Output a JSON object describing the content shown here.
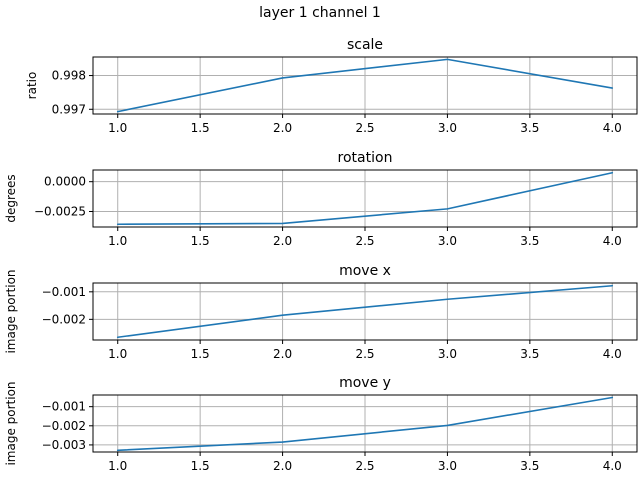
{
  "figure": {
    "suptitle": "layer 1 channel 1"
  },
  "colors": {
    "line": "#1f77b4",
    "grid": "#b0b0b0"
  },
  "chart_data": [
    {
      "type": "line",
      "title": "scale",
      "xlabel": "",
      "ylabel": "ratio",
      "x": [
        1.0,
        2.0,
        3.0,
        4.0
      ],
      "series": [
        {
          "values": [
            0.99693,
            0.99793,
            0.99848,
            0.99763
          ]
        }
      ],
      "xlim": [
        0.85,
        4.15
      ],
      "ylim": [
        0.99686,
        0.99855
      ],
      "xticks": [
        1.0,
        1.5,
        2.0,
        2.5,
        3.0,
        3.5,
        4.0
      ],
      "xtick_labels": [
        "1.0",
        "1.5",
        "2.0",
        "2.5",
        "3.0",
        "3.5",
        "4.0"
      ],
      "yticks": [
        0.997,
        0.998
      ],
      "ytick_labels": [
        "0.997",
        "0.998"
      ],
      "grid": true
    },
    {
      "type": "line",
      "title": "rotation",
      "xlabel": "",
      "ylabel": "degrees",
      "x": [
        1.0,
        2.0,
        3.0,
        4.0
      ],
      "series": [
        {
          "values": [
            -0.00357,
            -0.0035,
            -0.00228,
            0.00075
          ]
        }
      ],
      "xlim": [
        0.85,
        4.15
      ],
      "ylim": [
        -0.0038,
        0.00098
      ],
      "xticks": [
        1.0,
        1.5,
        2.0,
        2.5,
        3.0,
        3.5,
        4.0
      ],
      "xtick_labels": [
        "1.0",
        "1.5",
        "2.0",
        "2.5",
        "3.0",
        "3.5",
        "4.0"
      ],
      "yticks": [
        -0.0025,
        0.0
      ],
      "ytick_labels": [
        "−0.0025",
        "0.0000"
      ],
      "grid": true
    },
    {
      "type": "line",
      "title": "move x",
      "xlabel": "",
      "ylabel": "image portion",
      "x": [
        1.0,
        2.0,
        3.0,
        4.0
      ],
      "series": [
        {
          "values": [
            -0.00265,
            -0.00185,
            -0.00127,
            -0.00078
          ]
        }
      ],
      "xlim": [
        0.85,
        4.15
      ],
      "ylim": [
        -0.00275,
        -0.00068
      ],
      "xticks": [
        1.0,
        1.5,
        2.0,
        2.5,
        3.0,
        3.5,
        4.0
      ],
      "xtick_labels": [
        "1.0",
        "1.5",
        "2.0",
        "2.5",
        "3.0",
        "3.5",
        "4.0"
      ],
      "yticks": [
        -0.002,
        -0.001
      ],
      "ytick_labels": [
        "−0.002",
        "−0.001"
      ],
      "grid": true
    },
    {
      "type": "line",
      "title": "move y",
      "xlabel": "",
      "ylabel": "image portion",
      "x": [
        1.0,
        2.0,
        3.0,
        4.0
      ],
      "series": [
        {
          "values": [
            -0.00328,
            -0.00285,
            -0.00198,
            -0.00052
          ]
        }
      ],
      "xlim": [
        0.85,
        4.15
      ],
      "ylim": [
        -0.00337,
        -0.00039
      ],
      "xticks": [
        1.0,
        1.5,
        2.0,
        2.5,
        3.0,
        3.5,
        4.0
      ],
      "xtick_labels": [
        "1.0",
        "1.5",
        "2.0",
        "2.5",
        "3.0",
        "3.5",
        "4.0"
      ],
      "yticks": [
        -0.003,
        -0.002,
        -0.001
      ],
      "ytick_labels": [
        "−0.003",
        "−0.002",
        "−0.001"
      ],
      "grid": true
    }
  ]
}
